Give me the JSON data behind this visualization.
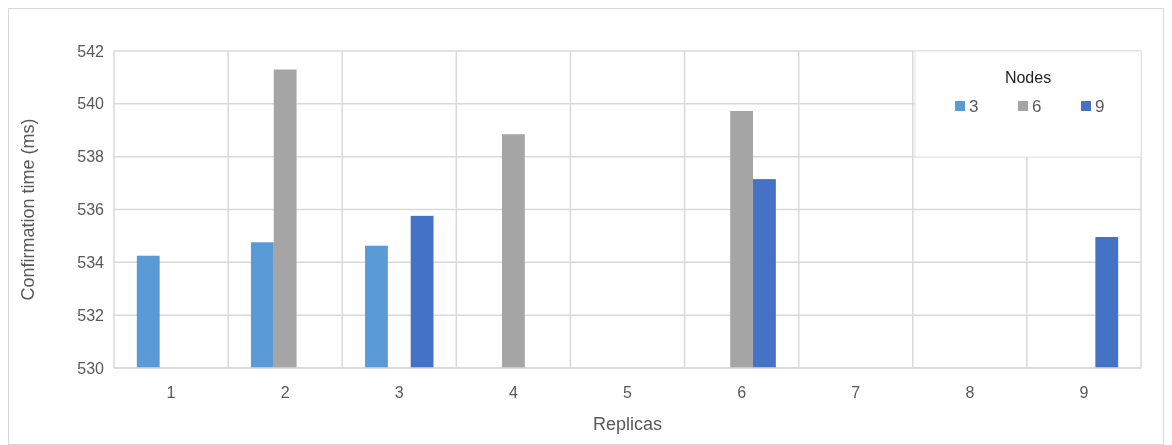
{
  "chart_data": {
    "type": "bar",
    "xlabel": "Replicas",
    "ylabel": "Confirmation time (ms)",
    "legend_title": "Nodes",
    "categories": [
      "1",
      "2",
      "3",
      "4",
      "5",
      "6",
      "7",
      "8",
      "9"
    ],
    "series": [
      {
        "name": "3",
        "color": "#5b9bd5",
        "values": [
          534.25,
          534.76,
          534.63,
          null,
          null,
          null,
          null,
          null,
          null
        ]
      },
      {
        "name": "6",
        "color": "#a5a5a5",
        "values": [
          null,
          541.3,
          null,
          538.85,
          null,
          539.73,
          null,
          null,
          null
        ]
      },
      {
        "name": "9",
        "color": "#4472c4",
        "values": [
          null,
          null,
          535.76,
          null,
          null,
          537.15,
          null,
          null,
          534.96
        ]
      }
    ],
    "ylim": [
      530,
      542
    ],
    "yticks": [
      530,
      532,
      534,
      536,
      538,
      540,
      542
    ],
    "grid": true,
    "legend": "top right"
  }
}
